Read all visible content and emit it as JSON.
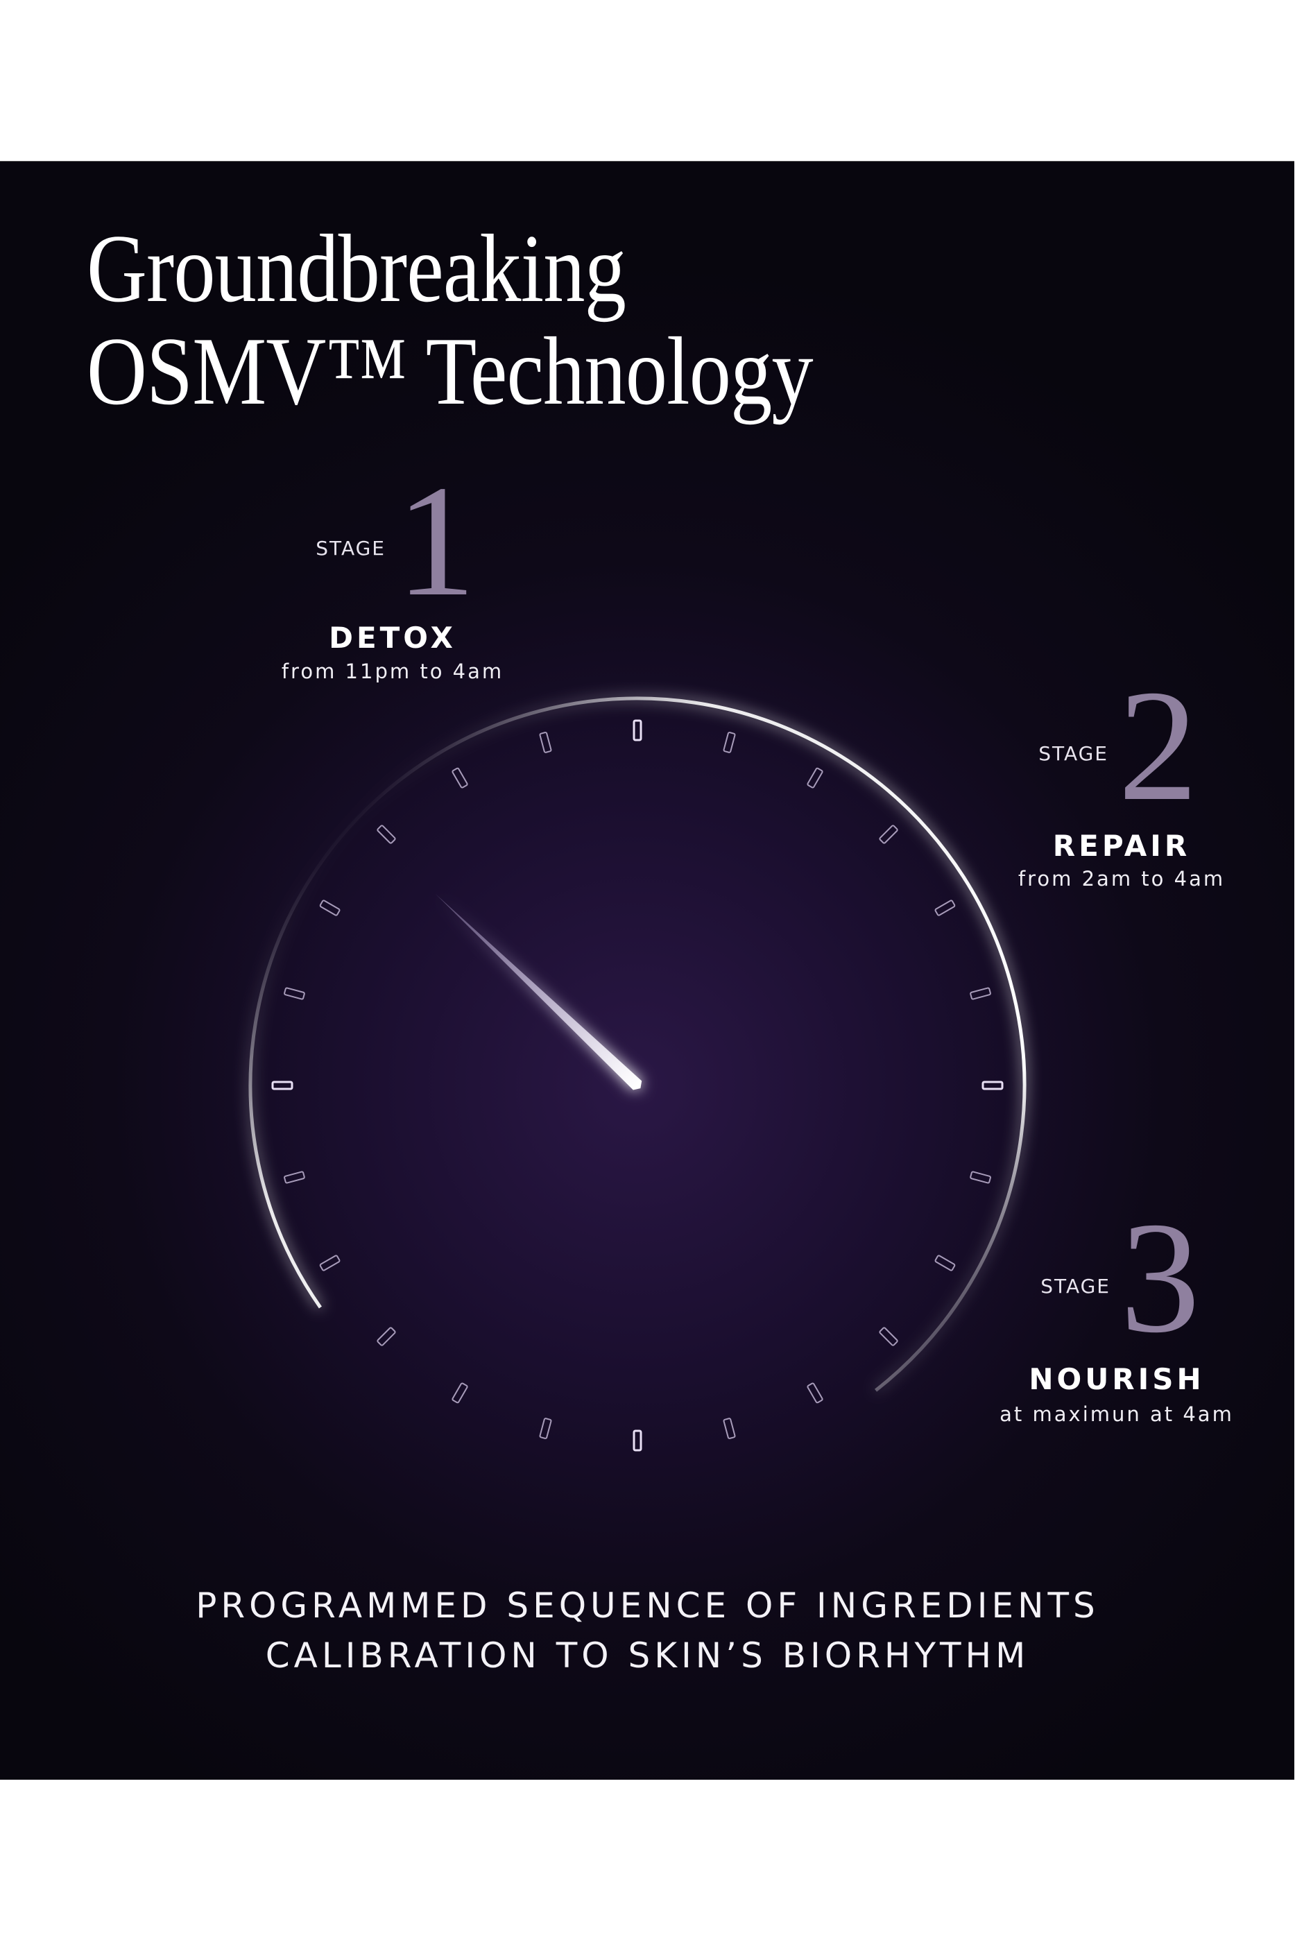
{
  "heading": {
    "line1": "Groundbreaking",
    "line2": "OSMV™ Technology"
  },
  "stages": [
    {
      "label": "STAGE",
      "number": "1",
      "name": "DETOX",
      "time": "from 11pm to 4am"
    },
    {
      "label": "STAGE",
      "number": "2",
      "name": "REPAIR",
      "time": "from 2am to 4am"
    },
    {
      "label": "STAGE",
      "number": "3",
      "name": "NOURISH",
      "time": "at maximun at 4am"
    }
  ],
  "tagline": {
    "line1": "PROGRAMMED SEQUENCE OF INGREDIENTS",
    "line2": "CALIBRATION TO SKIN’S BIORHYTHM"
  },
  "colors": {
    "background": "#0c0814",
    "glow": "#2a1745",
    "stage_number": "#8f809f",
    "text": "#ffffff"
  },
  "dial": {
    "icon": "clock-dial-icon",
    "needle_direction": "upper-left"
  }
}
